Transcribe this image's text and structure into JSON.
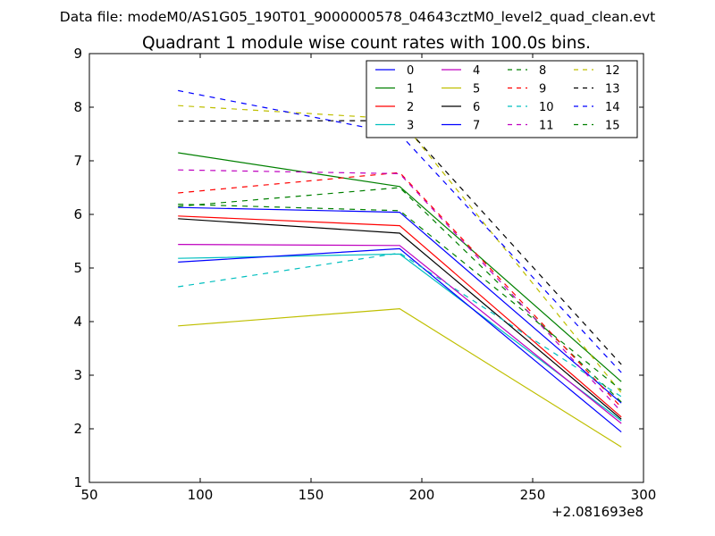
{
  "chart_data": {
    "type": "line",
    "suptitle": "Data file: modeM0/AS1G05_190T01_9000000578_04643cztM0_level2_quad_clean.evt",
    "title": "Quadrant 1 module wise count rates with 100.0s bins.",
    "xlabel": "",
    "ylabel": "",
    "x_offset_label": "+2.081693e8",
    "xlim": [
      50,
      300
    ],
    "ylim": [
      1,
      9
    ],
    "xticks": [
      50,
      100,
      150,
      200,
      250,
      300
    ],
    "yticks": [
      1,
      2,
      3,
      4,
      5,
      6,
      7,
      8,
      9
    ],
    "x": [
      90,
      190,
      290
    ],
    "legend_position": "top-right",
    "legend_columns": 4,
    "series": [
      {
        "name": "0",
        "color": "#0000ff",
        "dash": "solid",
        "values": [
          6.13,
          6.04,
          2.48
        ]
      },
      {
        "name": "1",
        "color": "#008000",
        "dash": "solid",
        "values": [
          7.15,
          6.52,
          2.88
        ]
      },
      {
        "name": "2",
        "color": "#ff0000",
        "dash": "solid",
        "values": [
          5.97,
          5.79,
          2.22
        ]
      },
      {
        "name": "3",
        "color": "#00bfbf",
        "dash": "solid",
        "values": [
          5.18,
          5.26,
          2.15
        ]
      },
      {
        "name": "4",
        "color": "#bf00bf",
        "dash": "solid",
        "values": [
          5.44,
          5.42,
          2.1
        ]
      },
      {
        "name": "5",
        "color": "#bfbf00",
        "dash": "solid",
        "values": [
          3.92,
          4.24,
          1.66
        ]
      },
      {
        "name": "6",
        "color": "#000000",
        "dash": "solid",
        "values": [
          5.92,
          5.65,
          2.18
        ]
      },
      {
        "name": "7",
        "color": "#0000ff",
        "dash": "solid",
        "values": [
          5.11,
          5.36,
          1.94
        ]
      },
      {
        "name": "8",
        "color": "#008000",
        "dash": "dashed",
        "values": [
          6.15,
          6.5,
          2.5
        ]
      },
      {
        "name": "9",
        "color": "#ff0000",
        "dash": "dashed",
        "values": [
          6.4,
          6.78,
          2.4
        ]
      },
      {
        "name": "10",
        "color": "#00bfbf",
        "dash": "dashed",
        "values": [
          4.65,
          5.28,
          2.6
        ]
      },
      {
        "name": "11",
        "color": "#bf00bf",
        "dash": "dashed",
        "values": [
          6.83,
          6.76,
          2.32
        ]
      },
      {
        "name": "12",
        "color": "#bfbf00",
        "dash": "dashed",
        "values": [
          8.03,
          7.78,
          2.67
        ]
      },
      {
        "name": "13",
        "color": "#000000",
        "dash": "dashed",
        "values": [
          7.74,
          7.75,
          3.2
        ]
      },
      {
        "name": "14",
        "color": "#0000ff",
        "dash": "dashed",
        "values": [
          8.31,
          7.5,
          3.05
        ]
      },
      {
        "name": "15",
        "color": "#008000",
        "dash": "dashed",
        "values": [
          6.19,
          6.07,
          2.72
        ]
      }
    ]
  }
}
